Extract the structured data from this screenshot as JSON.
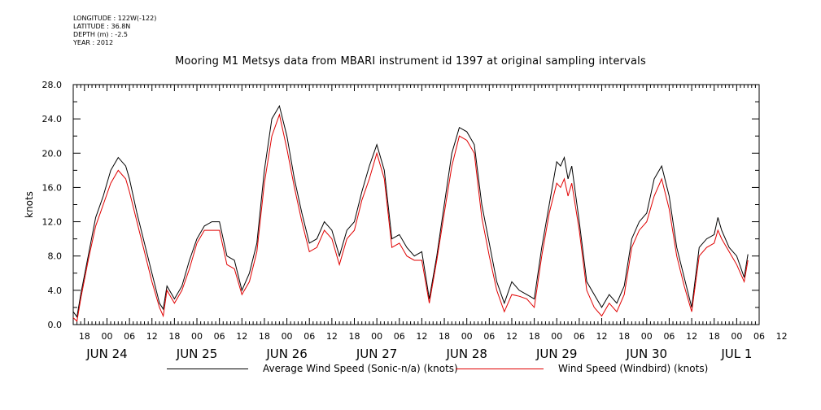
{
  "meta": {
    "longitude": "LONGITUDE : 122W(-122)",
    "latitude": "LATITUDE : 36.8N",
    "depth": "DEPTH (m) : -2.5",
    "year": "YEAR : 2012"
  },
  "colors": {
    "series_a": "#000000",
    "series_b": "#e00000"
  },
  "chart_data": {
    "type": "line",
    "title": "Mooring M1 Metsys data from MBARI instrument id 1397 at original sampling intervals",
    "ylabel": "knots",
    "xlabel": "",
    "ylim": [
      0,
      28
    ],
    "xlim_hours": [
      -9,
      174
    ],
    "yticks": [
      "0.0",
      "4.0",
      "8.0",
      "12.0",
      "16.0",
      "20.0",
      "24.0",
      "28.0"
    ],
    "hour_ticks": [
      "18",
      "00",
      "06",
      "12",
      "18",
      "00",
      "06",
      "12",
      "18",
      "00",
      "06",
      "12",
      "18",
      "00",
      "06",
      "12",
      "18",
      "00",
      "06",
      "12",
      "18",
      "00",
      "06",
      "12",
      "18",
      "00",
      "06",
      "12",
      "18",
      "00",
      "06",
      "12"
    ],
    "day_labels": [
      "JUN 24",
      "JUN 25",
      "JUN 26",
      "JUN 27",
      "JUN 28",
      "JUN 29",
      "JUN 30",
      "JUL  1"
    ],
    "x_units": "hours since JUN 24 00:00",
    "series": [
      {
        "name": "Average Wind Speed (Sonic-n/a) (knots)",
        "color": "#000000",
        "x": [
          -9,
          -8,
          -7,
          -5,
          -3,
          -1,
          1,
          3,
          5,
          6,
          8,
          10,
          12,
          14,
          15,
          16,
          18,
          20,
          22,
          24,
          26,
          28,
          30,
          32,
          34,
          36,
          38,
          40,
          42,
          44,
          46,
          48,
          50,
          52,
          54,
          56,
          58,
          60,
          62,
          64,
          66,
          68,
          70,
          72,
          74,
          76,
          78,
          80,
          82,
          84,
          86,
          88,
          90,
          92,
          94,
          96,
          98,
          100,
          102,
          104,
          106,
          108,
          110,
          112,
          114,
          116,
          118,
          120,
          121,
          122,
          123,
          124,
          126,
          128,
          130,
          132,
          134,
          136,
          138,
          140,
          142,
          144,
          146,
          148,
          150,
          152,
          154,
          156,
          158,
          160,
          162,
          163,
          164,
          166,
          168,
          170,
          171
        ],
        "y": [
          1.5,
          0.9,
          3.5,
          8.0,
          12.5,
          15.0,
          18.0,
          19.5,
          18.5,
          17.0,
          13.0,
          9.5,
          6.0,
          2.5,
          1.8,
          4.5,
          3.0,
          4.5,
          7.5,
          10.0,
          11.5,
          12.0,
          12.0,
          8.0,
          7.5,
          4.0,
          6.0,
          9.5,
          18.0,
          24.0,
          25.5,
          22.0,
          17.0,
          13.0,
          9.5,
          10.0,
          12.0,
          11.0,
          8.0,
          11.0,
          12.0,
          15.5,
          18.5,
          21.0,
          18.0,
          10.0,
          10.5,
          9.0,
          8.0,
          8.5,
          3.0,
          8.0,
          14.0,
          20.0,
          23.0,
          22.5,
          21.0,
          14.0,
          9.5,
          5.0,
          2.5,
          5.0,
          4.0,
          3.5,
          3.0,
          9.0,
          14.0,
          19.0,
          18.5,
          19.5,
          17.0,
          18.5,
          12.0,
          5.0,
          3.5,
          2.0,
          3.5,
          2.5,
          4.5,
          10.0,
          12.0,
          13.0,
          17.0,
          18.5,
          15.0,
          9.0,
          5.5,
          2.0,
          9.0,
          10.0,
          10.5,
          12.5,
          11.0,
          9.0,
          8.0,
          5.5,
          8.2
        ]
      },
      {
        "name": "Wind Speed (Windbird) (knots)",
        "color": "#e00000",
        "x": [
          -9,
          -8,
          -7,
          -5,
          -3,
          -1,
          1,
          3,
          5,
          6,
          8,
          10,
          12,
          14,
          15,
          16,
          18,
          20,
          22,
          24,
          26,
          28,
          30,
          32,
          34,
          36,
          38,
          40,
          42,
          44,
          46,
          48,
          50,
          52,
          54,
          56,
          58,
          60,
          62,
          64,
          66,
          68,
          70,
          72,
          74,
          76,
          78,
          80,
          82,
          84,
          86,
          88,
          90,
          92,
          94,
          96,
          98,
          100,
          102,
          104,
          106,
          108,
          110,
          112,
          114,
          116,
          118,
          120,
          121,
          122,
          123,
          124,
          126,
          128,
          130,
          132,
          134,
          136,
          138,
          140,
          142,
          144,
          146,
          148,
          150,
          152,
          154,
          156,
          158,
          160,
          162,
          163,
          164,
          166,
          168,
          170,
          171
        ],
        "y": [
          0.8,
          0.4,
          3.0,
          7.5,
          11.5,
          14.0,
          16.5,
          18.0,
          17.0,
          15.5,
          12.0,
          8.5,
          5.0,
          2.0,
          1.0,
          4.0,
          2.5,
          4.0,
          6.5,
          9.5,
          11.0,
          11.0,
          11.0,
          7.0,
          6.5,
          3.5,
          5.0,
          8.5,
          16.5,
          22.0,
          24.5,
          20.5,
          16.0,
          12.0,
          8.5,
          9.0,
          11.0,
          10.0,
          7.0,
          10.0,
          11.0,
          14.5,
          17.0,
          20.0,
          17.0,
          9.0,
          9.5,
          8.0,
          7.5,
          7.5,
          2.5,
          7.5,
          13.0,
          18.5,
          22.0,
          21.5,
          20.0,
          12.5,
          8.0,
          4.0,
          1.5,
          3.5,
          3.3,
          3.0,
          2.0,
          8.0,
          13.0,
          16.5,
          16.0,
          17.0,
          15.0,
          16.5,
          11.0,
          4.0,
          2.0,
          1.0,
          2.5,
          1.5,
          3.5,
          9.0,
          11.0,
          12.0,
          15.0,
          17.0,
          13.5,
          8.0,
          4.5,
          1.5,
          8.0,
          9.0,
          9.5,
          11.0,
          10.0,
          8.5,
          7.0,
          5.0,
          7.5
        ]
      }
    ]
  }
}
